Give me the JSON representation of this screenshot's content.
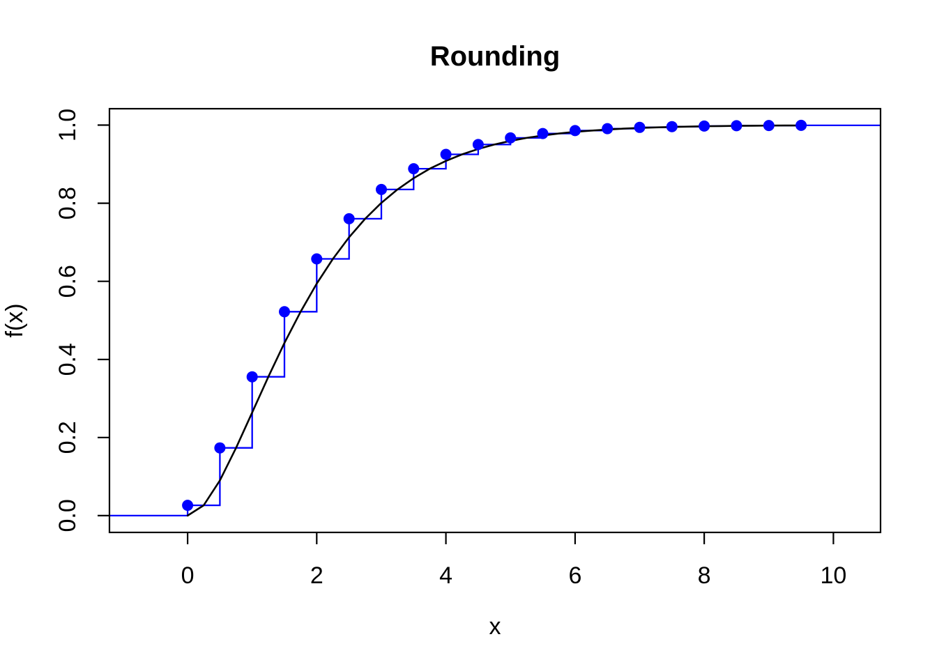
{
  "chart_data": {
    "type": "line",
    "title": "Rounding",
    "xlabel": "x",
    "ylabel": "f(x)",
    "xlim": [
      -1.21,
      10.73
    ],
    "ylim": [
      -0.043,
      1.042
    ],
    "x_ticks": [
      0,
      2,
      4,
      6,
      8,
      10
    ],
    "x_tick_labels": [
      "0",
      "2",
      "4",
      "6",
      "8",
      "10"
    ],
    "y_ticks": [
      0,
      0.2,
      0.4,
      0.6,
      0.8,
      1
    ],
    "y_tick_labels": [
      "0.0",
      "0.2",
      "0.4",
      "0.6",
      "0.8",
      "1.0"
    ],
    "grid": false,
    "legend": "none",
    "colors": {
      "curve": "#000000",
      "step": "#0000ff",
      "points": "#0000ff"
    },
    "series": [
      {
        "name": "smooth-cdf-curve",
        "type": "line",
        "color": "#000000",
        "x": [
          0,
          0.25,
          0.5,
          0.75,
          1,
          1.25,
          1.5,
          1.75,
          2,
          2.25,
          2.5,
          2.75,
          3,
          3.25,
          3.5,
          3.75,
          4,
          4.25,
          4.5,
          4.75,
          5,
          5.25,
          5.5,
          5.75,
          6,
          6.25,
          6.5,
          6.75,
          7,
          7.25,
          7.5,
          7.75,
          8,
          8.25,
          8.5,
          8.75,
          9,
          9.25,
          9.5
        ],
        "y": [
          0,
          0.0265,
          0.0902,
          0.1734,
          0.2642,
          0.3554,
          0.4422,
          0.5221,
          0.594,
          0.6575,
          0.7127,
          0.7603,
          0.8009,
          0.8352,
          0.8641,
          0.8883,
          0.9084,
          0.9251,
          0.9389,
          0.9503,
          0.9596,
          0.9672,
          0.9734,
          0.9785,
          0.9827,
          0.986,
          0.9887,
          0.9909,
          0.9927,
          0.9941,
          0.9953,
          0.9962,
          0.997,
          0.9976,
          0.9981,
          0.9985,
          0.9988,
          0.999,
          0.9992
        ]
      },
      {
        "name": "rounded-cdf-step",
        "type": "step-with-points",
        "color": "#0000ff",
        "marker": "filled-circle",
        "pre_level": 0,
        "extends_left_to": -1.21,
        "extends_right_to": 10.73,
        "x": [
          0,
          0.5,
          1,
          1.5,
          2,
          2.5,
          3,
          3.5,
          4,
          4.5,
          5,
          5.5,
          6,
          6.5,
          7,
          7.5,
          8,
          8.5,
          9,
          9.5
        ],
        "y": [
          0.0265,
          0.1734,
          0.3554,
          0.5221,
          0.6575,
          0.7603,
          0.8352,
          0.8883,
          0.9251,
          0.9503,
          0.9672,
          0.9785,
          0.986,
          0.9909,
          0.9941,
          0.9962,
          0.9976,
          0.9985,
          0.999,
          0.9994
        ]
      }
    ]
  }
}
